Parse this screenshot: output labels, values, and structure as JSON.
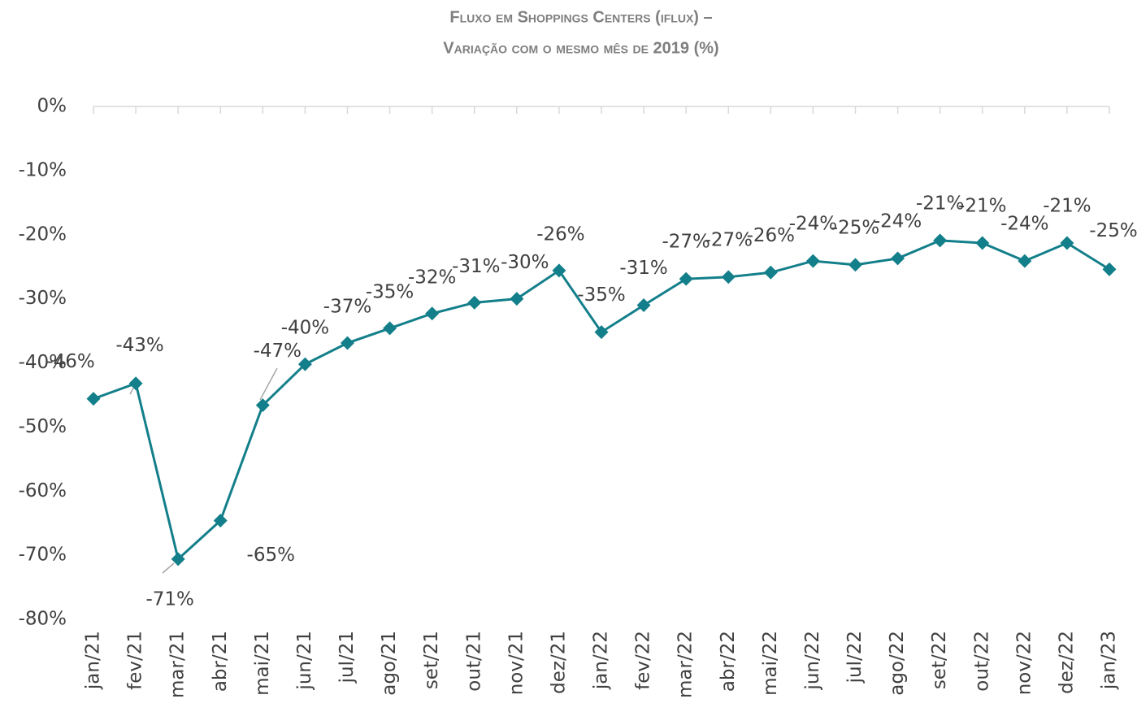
{
  "chart_data": {
    "type": "line",
    "title": [
      "Fluxo em Shoppings Centers (iflux) –",
      "Variação com o mesmo mês de 2019 (%)"
    ],
    "categories": [
      "jan/21",
      "fev/21",
      "mar/21",
      "abr/21",
      "mai/21",
      "jun/21",
      "jul/21",
      "ago/21",
      "set/21",
      "out/21",
      "nov/21",
      "dez/21",
      "jan/22",
      "fev/22",
      "mar/22",
      "abr/22",
      "mai/22",
      "jun/22",
      "jul/22",
      "ago/22",
      "set/22",
      "out/22",
      "nov/22",
      "dez/22",
      "jan/23"
    ],
    "series": [
      {
        "color": "#137f8a",
        "values": [
          -45.6,
          -43.2,
          -70.6,
          -64.6,
          -46.6,
          -40.2,
          -36.9,
          -34.6,
          -32.3,
          -30.6,
          -30.0,
          -25.6,
          -35.2,
          -31.0,
          -26.9,
          -26.6,
          -25.9,
          -24.1,
          -24.7,
          -23.7,
          -20.9,
          -21.3,
          -24.1,
          -21.3,
          -25.4
        ],
        "value_labels": [
          "-46%",
          "-43%",
          "-71%",
          "-65%",
          "-47%",
          "-40%",
          "-37%",
          "-35%",
          "-32%",
          "-31%",
          "-30%",
          "-26%",
          "-35%",
          "-31%",
          "-27%",
          "-27%",
          "-26%",
          "-24%",
          "-25%",
          "-24%",
          "-21%",
          "-21%",
          "-24%",
          "-21%",
          "-25%"
        ]
      }
    ],
    "ylim": [
      -80,
      0
    ],
    "yticks": [
      {
        "value": 0,
        "label": "0%"
      },
      {
        "value": -10,
        "label": "-10%"
      },
      {
        "value": -20,
        "label": "-20%"
      },
      {
        "value": -30,
        "label": "-30%"
      },
      {
        "value": -40,
        "label": "-40%"
      },
      {
        "value": -50,
        "label": "-50%"
      },
      {
        "value": -60,
        "label": "-60%"
      },
      {
        "value": -70,
        "label": "-70%"
      },
      {
        "value": -80,
        "label": "-80%"
      }
    ]
  }
}
